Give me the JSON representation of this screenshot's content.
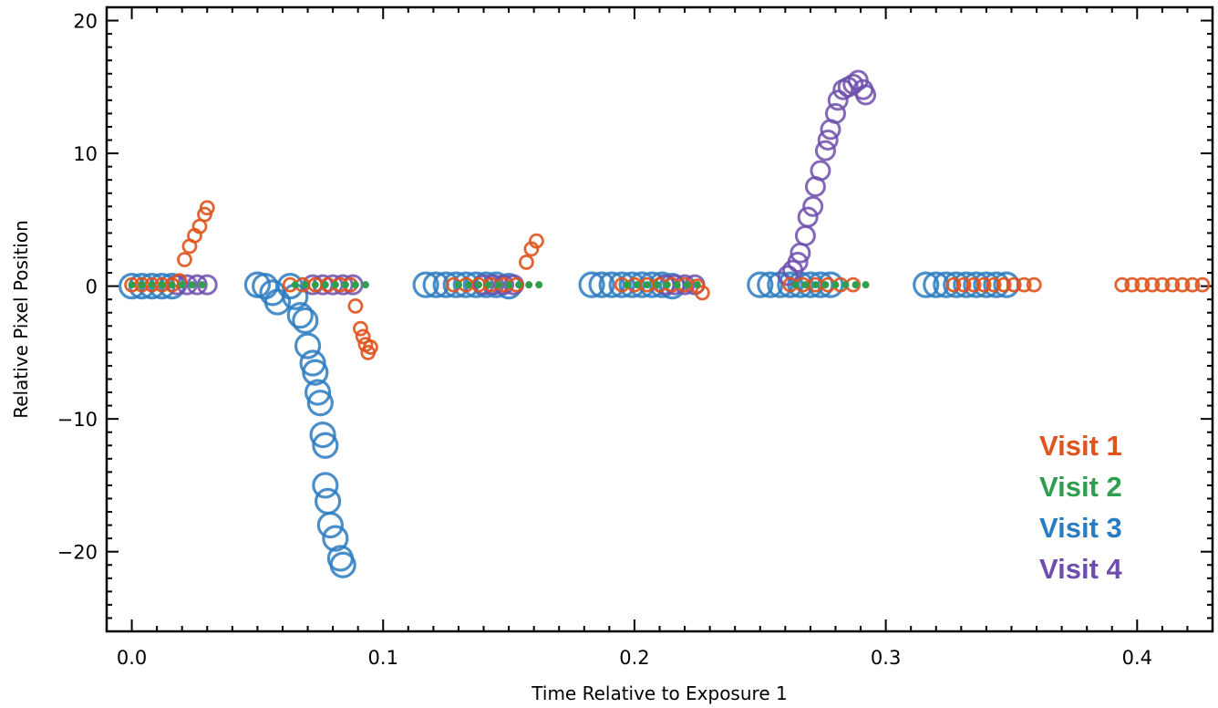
{
  "chart_data": {
    "type": "scatter",
    "title": "",
    "xlabel": "Time Relative to Exposure 1",
    "ylabel": "Relative Pixel Position",
    "xlim": [
      -0.01,
      0.43
    ],
    "ylim": [
      -26,
      21
    ],
    "x_ticks": [
      0.0,
      0.1,
      0.2,
      0.3,
      0.4
    ],
    "x_tick_labels": [
      "0.0",
      "0.1",
      "0.2",
      "0.3",
      "0.4"
    ],
    "y_ticks": [
      -20,
      -10,
      0,
      10,
      20
    ],
    "y_tick_labels": [
      "−20",
      "−10",
      "0",
      "10",
      "20"
    ],
    "grid": false,
    "legend_position": "bottom-right",
    "series": [
      {
        "name": "Visit 1",
        "color": "#e0531c",
        "marker": "open-circle-small",
        "points": [
          [
            0.0,
            0.1
          ],
          [
            0.004,
            0.1
          ],
          [
            0.008,
            0.1
          ],
          [
            0.012,
            0.1
          ],
          [
            0.016,
            0.1
          ],
          [
            0.019,
            0.4
          ],
          [
            0.021,
            2.0
          ],
          [
            0.023,
            3.0
          ],
          [
            0.025,
            3.8
          ],
          [
            0.027,
            4.5
          ],
          [
            0.029,
            5.4
          ],
          [
            0.03,
            5.9
          ],
          [
            0.063,
            0.1
          ],
          [
            0.068,
            0.1
          ],
          [
            0.073,
            0.1
          ],
          [
            0.078,
            0.1
          ],
          [
            0.083,
            0.1
          ],
          [
            0.087,
            0.1
          ],
          [
            0.089,
            -1.5
          ],
          [
            0.091,
            -3.2
          ],
          [
            0.092,
            -3.8
          ],
          [
            0.093,
            -4.4
          ],
          [
            0.094,
            -5.0
          ],
          [
            0.095,
            -4.6
          ],
          [
            0.128,
            0.1
          ],
          [
            0.133,
            0.1
          ],
          [
            0.138,
            0.1
          ],
          [
            0.143,
            0.1
          ],
          [
            0.148,
            0.1
          ],
          [
            0.153,
            0.1
          ],
          [
            0.157,
            1.8
          ],
          [
            0.159,
            2.8
          ],
          [
            0.161,
            3.4
          ],
          [
            0.195,
            0.1
          ],
          [
            0.2,
            0.1
          ],
          [
            0.205,
            0.1
          ],
          [
            0.21,
            0.1
          ],
          [
            0.215,
            0.1
          ],
          [
            0.22,
            0.1
          ],
          [
            0.225,
            0.0
          ],
          [
            0.227,
            -0.5
          ],
          [
            0.262,
            0.1
          ],
          [
            0.267,
            0.1
          ],
          [
            0.272,
            0.1
          ],
          [
            0.277,
            0.1
          ],
          [
            0.282,
            0.1
          ],
          [
            0.287,
            0.1
          ],
          [
            0.327,
            0.1
          ],
          [
            0.331,
            0.1
          ],
          [
            0.335,
            0.1
          ],
          [
            0.339,
            0.1
          ],
          [
            0.343,
            0.1
          ],
          [
            0.347,
            0.1
          ],
          [
            0.351,
            0.1
          ],
          [
            0.355,
            0.1
          ],
          [
            0.359,
            0.1
          ],
          [
            0.394,
            0.1
          ],
          [
            0.398,
            0.1
          ],
          [
            0.402,
            0.1
          ],
          [
            0.406,
            0.1
          ],
          [
            0.41,
            0.1
          ],
          [
            0.414,
            0.1
          ],
          [
            0.418,
            0.1
          ],
          [
            0.422,
            0.1
          ],
          [
            0.426,
            0.1
          ]
        ]
      },
      {
        "name": "Visit 2",
        "color": "#2f9e4e",
        "marker": "dot",
        "points": [
          [
            0.0,
            0.1
          ],
          [
            0.004,
            0.1
          ],
          [
            0.008,
            0.1
          ],
          [
            0.012,
            0.1
          ],
          [
            0.016,
            0.1
          ],
          [
            0.02,
            0.1
          ],
          [
            0.024,
            0.1
          ],
          [
            0.028,
            0.1
          ],
          [
            0.065,
            0.1
          ],
          [
            0.069,
            0.1
          ],
          [
            0.073,
            0.1
          ],
          [
            0.077,
            0.1
          ],
          [
            0.081,
            0.1
          ],
          [
            0.085,
            0.1
          ],
          [
            0.089,
            0.1
          ],
          [
            0.093,
            0.1
          ],
          [
            0.13,
            0.1
          ],
          [
            0.134,
            0.1
          ],
          [
            0.138,
            0.1
          ],
          [
            0.142,
            0.1
          ],
          [
            0.146,
            0.1
          ],
          [
            0.15,
            0.1
          ],
          [
            0.154,
            0.1
          ],
          [
            0.158,
            0.1
          ],
          [
            0.162,
            0.1
          ],
          [
            0.197,
            0.1
          ],
          [
            0.201,
            0.1
          ],
          [
            0.205,
            0.1
          ],
          [
            0.209,
            0.1
          ],
          [
            0.213,
            0.1
          ],
          [
            0.217,
            0.1
          ],
          [
            0.221,
            0.1
          ],
          [
            0.225,
            0.1
          ],
          [
            0.264,
            0.1
          ],
          [
            0.268,
            0.1
          ],
          [
            0.272,
            0.1
          ],
          [
            0.276,
            0.1
          ],
          [
            0.28,
            0.1
          ],
          [
            0.284,
            0.1
          ],
          [
            0.288,
            0.1
          ],
          [
            0.292,
            0.1
          ]
        ]
      },
      {
        "name": "Visit 3",
        "color": "#2a7bbf",
        "marker": "open-circle-large",
        "points": [
          [
            0.0,
            0.0
          ],
          [
            0.004,
            0.0
          ],
          [
            0.008,
            0.0
          ],
          [
            0.012,
            0.0
          ],
          [
            0.016,
            0.0
          ],
          [
            0.05,
            0.1
          ],
          [
            0.053,
            0.0
          ],
          [
            0.056,
            -0.5
          ],
          [
            0.058,
            -1.2
          ],
          [
            0.063,
            0.0
          ],
          [
            0.065,
            -0.8
          ],
          [
            0.067,
            -2.2
          ],
          [
            0.069,
            -2.6
          ],
          [
            0.07,
            -4.5
          ],
          [
            0.072,
            -5.8
          ],
          [
            0.073,
            -6.5
          ],
          [
            0.074,
            -8.0
          ],
          [
            0.075,
            -8.8
          ],
          [
            0.076,
            -11.2
          ],
          [
            0.077,
            -12.0
          ],
          [
            0.077,
            -15.0
          ],
          [
            0.078,
            -16.2
          ],
          [
            0.079,
            -18.0
          ],
          [
            0.081,
            -19.0
          ],
          [
            0.083,
            -20.5
          ],
          [
            0.084,
            -21.0
          ],
          [
            0.117,
            0.1
          ],
          [
            0.121,
            0.1
          ],
          [
            0.125,
            0.1
          ],
          [
            0.129,
            0.1
          ],
          [
            0.133,
            0.1
          ],
          [
            0.137,
            0.1
          ],
          [
            0.141,
            0.1
          ],
          [
            0.145,
            0.1
          ],
          [
            0.15,
            0.0
          ],
          [
            0.183,
            0.1
          ],
          [
            0.187,
            0.1
          ],
          [
            0.191,
            0.1
          ],
          [
            0.195,
            0.1
          ],
          [
            0.199,
            0.1
          ],
          [
            0.203,
            0.1
          ],
          [
            0.207,
            0.1
          ],
          [
            0.211,
            0.1
          ],
          [
            0.215,
            0.0
          ],
          [
            0.25,
            0.1
          ],
          [
            0.254,
            0.1
          ],
          [
            0.258,
            0.1
          ],
          [
            0.262,
            0.1
          ],
          [
            0.266,
            0.1
          ],
          [
            0.27,
            0.1
          ],
          [
            0.274,
            0.1
          ],
          [
            0.278,
            0.1
          ],
          [
            0.316,
            0.1
          ],
          [
            0.32,
            0.1
          ],
          [
            0.324,
            0.1
          ],
          [
            0.328,
            0.1
          ],
          [
            0.332,
            0.1
          ],
          [
            0.336,
            0.1
          ],
          [
            0.34,
            0.1
          ],
          [
            0.344,
            0.1
          ],
          [
            0.348,
            0.1
          ]
        ]
      },
      {
        "name": "Visit 4",
        "color": "#6d4fab",
        "marker": "open-circle-medium",
        "points": [
          [
            0.018,
            0.1
          ],
          [
            0.022,
            0.1
          ],
          [
            0.026,
            0.1
          ],
          [
            0.03,
            0.1
          ],
          [
            0.072,
            0.1
          ],
          [
            0.076,
            0.1
          ],
          [
            0.08,
            0.1
          ],
          [
            0.084,
            0.1
          ],
          [
            0.088,
            0.1
          ],
          [
            0.14,
            0.1
          ],
          [
            0.144,
            0.1
          ],
          [
            0.148,
            0.1
          ],
          [
            0.152,
            0.1
          ],
          [
            0.212,
            0.1
          ],
          [
            0.216,
            0.1
          ],
          [
            0.22,
            0.1
          ],
          [
            0.224,
            0.1
          ],
          [
            0.261,
            0.8
          ],
          [
            0.263,
            1.2
          ],
          [
            0.265,
            1.8
          ],
          [
            0.266,
            2.5
          ],
          [
            0.268,
            3.8
          ],
          [
            0.269,
            5.2
          ],
          [
            0.271,
            6.0
          ],
          [
            0.272,
            7.5
          ],
          [
            0.274,
            8.7
          ],
          [
            0.276,
            10.2
          ],
          [
            0.277,
            11.0
          ],
          [
            0.278,
            11.8
          ],
          [
            0.28,
            13.0
          ],
          [
            0.281,
            14.0
          ],
          [
            0.283,
            14.8
          ],
          [
            0.285,
            15.0
          ],
          [
            0.287,
            15.2
          ],
          [
            0.289,
            15.5
          ],
          [
            0.291,
            14.8
          ],
          [
            0.292,
            14.4
          ]
        ]
      }
    ]
  }
}
